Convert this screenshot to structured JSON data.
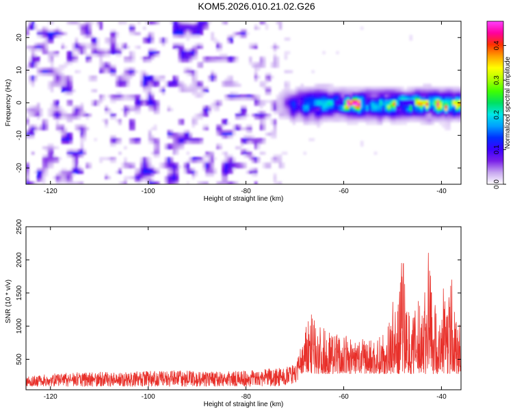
{
  "title": "KOM5.2026.010.21.02.G26",
  "chart_data": [
    {
      "type": "heatmap",
      "xlabel": "Height of straight line (km)",
      "ylabel": "Frequency (Hz)",
      "xlim": [
        -125,
        -36
      ],
      "ylim": [
        -25,
        25
      ],
      "xticks": [
        -120,
        -100,
        -80,
        -60,
        -40
      ],
      "yticks": [
        -20,
        -10,
        0,
        10,
        20
      ],
      "xtick_labels": [
        "-120",
        "-100",
        "-80",
        "-60",
        "-40"
      ],
      "ytick_labels": [
        "-20",
        "-10",
        "0",
        "10",
        "20"
      ],
      "colorbar": {
        "label": "Normalized spectral amplitude",
        "range": [
          0,
          0.47
        ],
        "ticks": [
          0,
          0.1,
          0.2,
          0.3,
          0.4
        ],
        "tick_labels": [
          "0.0",
          "0.1",
          "0.2",
          "0.3",
          "0.4"
        ],
        "colors": [
          "#ffffff",
          "#c8a8f0",
          "#7a20e8",
          "#3a00ff",
          "#0030ff",
          "#00a0ff",
          "#00e6e6",
          "#00e060",
          "#40ff00",
          "#b0ff00",
          "#ffff00",
          "#ffa000",
          "#ff3000",
          "#ff00a0",
          "#ff40ff"
        ]
      },
      "regions": [
        {
          "name": "broadband noise",
          "x_range": [
            -125,
            -80
          ],
          "freq_range": [
            -25,
            25
          ],
          "amplitude": 0.06
        },
        {
          "name": "transition",
          "x_range": [
            -80,
            -69
          ],
          "freq_range": [
            -25,
            25
          ],
          "amplitude": 0.05
        },
        {
          "name": "signal band",
          "x_range": [
            -75,
            -36
          ],
          "freq_center": -0.5,
          "freq_halfwidth": 3.5,
          "amplitude": 0.16
        },
        {
          "name": "strong signal",
          "x_range": [
            -60,
            -36
          ],
          "freq_center": -0.5,
          "freq_halfwidth": 2,
          "amplitude": 0.4
        }
      ]
    },
    {
      "type": "line",
      "xlabel": "Height of straight line (km)",
      "ylabel": "SNR (10 * v/v)",
      "xlim": [
        -125,
        -36
      ],
      "ylim": [
        40,
        2500
      ],
      "xticks": [
        -120,
        -100,
        -80,
        -60,
        -40
      ],
      "yticks": [
        500,
        1000,
        1500,
        2000,
        2500
      ],
      "xtick_labels": [
        "-120",
        "-100",
        "-80",
        "-60",
        "-40"
      ],
      "ytick_labels": [
        "500",
        "1000",
        "1500",
        "2000",
        "2500"
      ],
      "color": "#e8302a",
      "series": [
        {
          "name": "SNR",
          "x": [
            -125,
            -120,
            -115,
            -110,
            -105,
            -100,
            -95,
            -90,
            -85,
            -80,
            -75,
            -72,
            -70,
            -68,
            -67,
            -66,
            -64,
            -62,
            -60,
            -58,
            -56,
            -54,
            -52,
            -51,
            -50,
            -49,
            -48,
            -47,
            -46,
            -45,
            -44,
            -43,
            -42.5,
            -42,
            -41,
            -40,
            -39.5,
            -39,
            -38,
            -37,
            -36
          ],
          "values": [
            240,
            280,
            300,
            310,
            310,
            320,
            330,
            320,
            310,
            330,
            360,
            380,
            420,
            880,
            1260,
            1100,
            980,
            900,
            860,
            820,
            800,
            820,
            860,
            1000,
            1440,
            1200,
            2200,
            1300,
            1100,
            1350,
            1550,
            1750,
            2520,
            1700,
            1250,
            1000,
            1900,
            1200,
            1800,
            1100,
            1000
          ]
        }
      ]
    }
  ]
}
